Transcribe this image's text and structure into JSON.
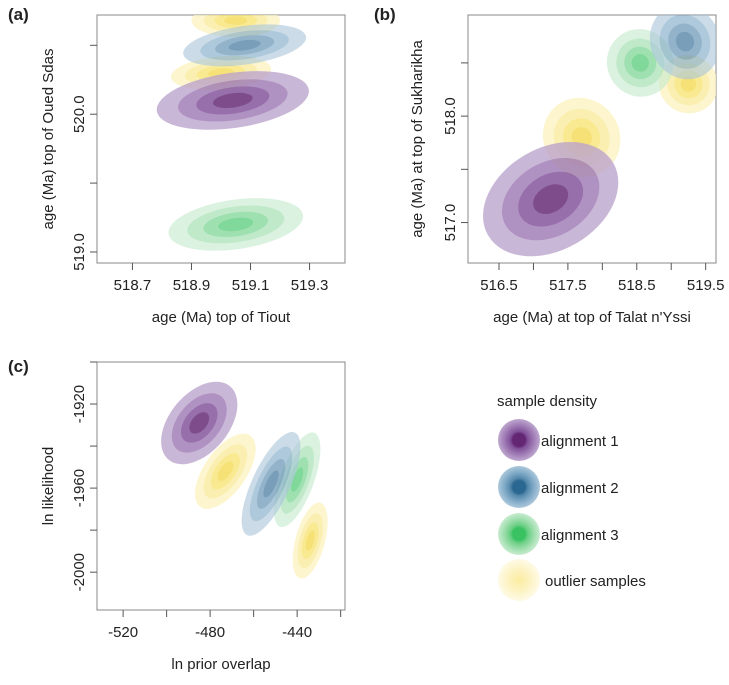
{
  "legend": {
    "title": "sample density",
    "entries": [
      {
        "label": "alignment 1",
        "color": "#5b1a6b",
        "light": "#a98bbd"
      },
      {
        "label": "alignment 2",
        "color": "#1f5f8b",
        "light": "#86aec8"
      },
      {
        "label": "alignment 3",
        "color": "#2fbf5a",
        "light": "#a9e0b4"
      },
      {
        "label": "outlier samples",
        "color": "#f7e26b",
        "light": "#fbf0b0"
      }
    ]
  },
  "chart_data": [
    {
      "panel": "(a)",
      "type": "contour",
      "xlabel": "age (Ma) top of Tiout",
      "ylabel": "age (Ma) top of Oued Sdas",
      "xlim": [
        518.58,
        519.42
      ],
      "ylim": [
        518.92,
        520.72
      ],
      "xticks": [
        518.7,
        518.9,
        519.1,
        519.3
      ],
      "xtick_labels": [
        "518.7",
        "518.9",
        "519.1",
        "519.3"
      ],
      "yticks": [
        519.0,
        519.5,
        520.0,
        520.5
      ],
      "ytick_labels": [
        "519.0",
        "",
        "520.0",
        ""
      ],
      "series": [
        {
          "name": "outlier samples",
          "key": "outlier",
          "regions": [
            {
              "cx": 519.05,
              "cy": 520.68,
              "rx": 0.15,
              "ry": 0.12,
              "rot": 0
            },
            {
              "cx": 519.0,
              "cy": 520.3,
              "rx": 0.17,
              "ry": 0.12,
              "rot": 5
            }
          ]
        },
        {
          "name": "alignment 2",
          "key": "a2",
          "regions": [
            {
              "cx": 519.08,
              "cy": 520.5,
              "rx": 0.21,
              "ry": 0.14,
              "rot": 8
            }
          ]
        },
        {
          "name": "alignment 1",
          "key": "a1",
          "regions": [
            {
              "cx": 519.04,
              "cy": 520.1,
              "rx": 0.26,
              "ry": 0.2,
              "rot": 8
            }
          ]
        },
        {
          "name": "alignment 3",
          "key": "a3",
          "regions": [
            {
              "cx": 519.05,
              "cy": 519.2,
              "rx": 0.23,
              "ry": 0.18,
              "rot": 8
            }
          ]
        }
      ]
    },
    {
      "panel": "(b)",
      "type": "contour",
      "xlabel": "age (Ma) at top of Talat n'Yssi",
      "ylabel": "age (Ma) at top of Sukharikha",
      "xlim": [
        516.05,
        519.65
      ],
      "ylim": [
        516.62,
        518.95
      ],
      "xticks": [
        516.5,
        517.0,
        517.5,
        518.0,
        518.5,
        519.0,
        519.5
      ],
      "xtick_labels": [
        "516.5",
        "",
        "517.5",
        "",
        "518.5",
        "",
        "519.5"
      ],
      "yticks": [
        517.0,
        517.5,
        518.0,
        518.5
      ],
      "ytick_labels": [
        "517.0",
        "",
        "518.0",
        ""
      ],
      "series": [
        {
          "name": "outlier samples",
          "key": "outlier",
          "regions": [
            {
              "cx": 517.7,
              "cy": 517.8,
              "rx": 0.55,
              "ry": 0.38,
              "rot": 35
            },
            {
              "cx": 519.25,
              "cy": 518.3,
              "rx": 0.42,
              "ry": 0.28,
              "rot": 60
            }
          ]
        },
        {
          "name": "alignment 1",
          "key": "a1",
          "regions": [
            {
              "cx": 517.25,
              "cy": 517.22,
              "rx": 1.05,
              "ry": 0.48,
              "rot": 30
            }
          ]
        },
        {
          "name": "alignment 3",
          "key": "a3",
          "regions": [
            {
              "cx": 518.55,
              "cy": 518.5,
              "rx": 0.48,
              "ry": 0.32,
              "rot": 30
            }
          ]
        },
        {
          "name": "alignment 2",
          "key": "a2",
          "regions": [
            {
              "cx": 519.2,
              "cy": 518.7,
              "rx": 0.5,
              "ry": 0.36,
              "rot": 25
            }
          ]
        }
      ]
    },
    {
      "panel": "(c)",
      "type": "contour",
      "xlabel": "ln prior overlap",
      "ylabel": "ln likelihood",
      "xlim": [
        -532,
        -418
      ],
      "ylim": [
        -2018,
        -1900
      ],
      "xticks": [
        -520,
        -500,
        -480,
        -460,
        -440,
        -420
      ],
      "xtick_labels": [
        "-520",
        "",
        "-480",
        "",
        "-440",
        ""
      ],
      "yticks": [
        -1900,
        -1920,
        -1940,
        -1960,
        -1980,
        -2000
      ],
      "ytick_labels": [
        "",
        "-1920",
        "",
        "-1960",
        "",
        "-2000"
      ],
      "series": [
        {
          "name": "outlier samples",
          "key": "outlier",
          "regions": [
            {
              "cx": -473,
              "cy": -1952,
              "rx": 20,
              "ry": 10,
              "rot": 55
            },
            {
              "cx": -434,
              "cy": -1985,
              "rx": 18,
              "ry": 7,
              "rot": 75
            }
          ]
        },
        {
          "name": "alignment 1",
          "key": "a1",
          "regions": [
            {
              "cx": -485,
              "cy": -1929,
              "rx": 22,
              "ry": 14,
              "rot": 50
            }
          ]
        },
        {
          "name": "alignment 3",
          "key": "a3",
          "regions": [
            {
              "cx": -440,
              "cy": -1956,
              "rx": 23,
              "ry": 8,
              "rot": 70
            }
          ]
        },
        {
          "name": "alignment 2",
          "key": "a2",
          "regions": [
            {
              "cx": -452,
              "cy": -1958,
              "rx": 26,
              "ry": 9,
              "rot": 65
            }
          ]
        }
      ]
    }
  ]
}
